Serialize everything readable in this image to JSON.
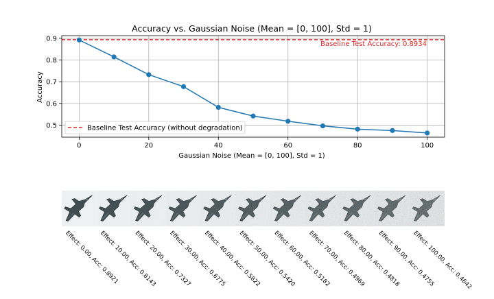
{
  "chart_data": {
    "type": "line",
    "title": "Accuracy vs. Gaussian Noise (Mean = [0, 100], Std = 1)",
    "xlabel": "Gaussian Noise (Mean = [0, 100], Std = 1)",
    "ylabel": "Accuracy",
    "xlim": [
      -5,
      105
    ],
    "ylim": [
      0.445,
      0.912
    ],
    "xticks": [
      0,
      20,
      40,
      60,
      80,
      100
    ],
    "yticks": [
      0.5,
      0.6,
      0.7,
      0.8,
      0.9
    ],
    "grid": true,
    "x": [
      0,
      10,
      20,
      30,
      40,
      50,
      60,
      70,
      80,
      90,
      100
    ],
    "series": [
      {
        "values": [
          0.8921,
          0.8143,
          0.7327,
          0.6775,
          0.5822,
          0.542,
          0.5182,
          0.4969,
          0.4818,
          0.4755,
          0.4642
        ],
        "color": "#1f77b4"
      }
    ],
    "baseline": {
      "value": 0.8934,
      "color": "#d62728",
      "annotation": "Baseline Test Accuracy: 0.8934",
      "legend_label": "Baseline Test Accuracy (without degradation)"
    },
    "legend_position": "lower-left"
  },
  "thumbnails": {
    "count": 11,
    "labels": [
      "Effect: 0.00, Acc: 0.8921",
      "Effect: 10.00, Acc: 0.8143",
      "Effect: 20.00, Acc: 0.7327",
      "Effect: 30.00, Acc: 0.6775",
      "Effect: 40.00, Acc: 0.5822",
      "Effect: 50.00, Acc: 0.5420",
      "Effect: 60.00, Acc: 0.5182",
      "Effect: 70.00, Acc: 0.4969",
      "Effect: 80.00, Acc: 0.4818",
      "Effect: 90.00, Acc: 0.4755",
      "Effect: 100.00, Acc: 0.4642"
    ],
    "noise_levels": [
      0,
      10,
      20,
      30,
      40,
      50,
      60,
      70,
      80,
      90,
      100
    ],
    "subject_icon": "fighter-jet-icon"
  }
}
